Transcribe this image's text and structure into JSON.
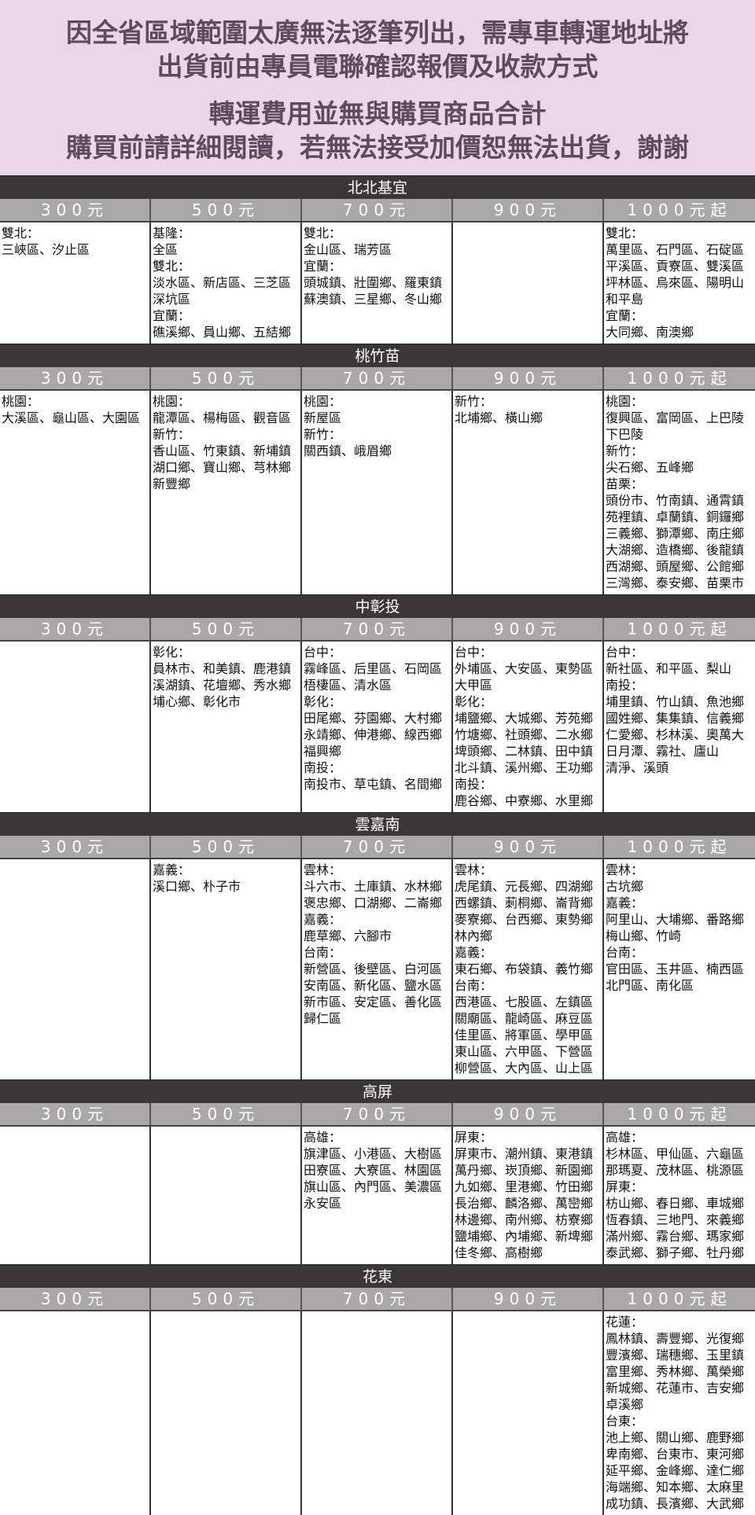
{
  "notice": {
    "lines": [
      "因全省區域範圍太廣無法逐筆列出，需專車轉運地址將",
      "出貨前由專員電聯確認報價及收款方式",
      "轉運費用並無與購買商品合計",
      "購買前請詳細閱讀，若無法接受加價恕無法出貨，謝謝"
    ],
    "color": "#5c4b5f",
    "background": "#ebd6e9"
  },
  "price_headers": [
    "300元",
    "500元",
    "700元",
    "900元",
    "1000元起"
  ],
  "sections": [
    {
      "name": "北北基宜",
      "cells": [
        [
          "雙北：",
          "三峽區、汐止區"
        ],
        [
          "基隆：",
          "全區",
          "雙北：",
          "淡水區、新店區、三芝區",
          "深坑區",
          "宜蘭：",
          "礁溪鄉、員山鄉、五結鄉"
        ],
        [
          "雙北：",
          "金山區、瑞芳區",
          "宜蘭：",
          "頭城鎮、壯圍鄉、羅東鎮",
          "蘇澳鎮、三星鄉、冬山鄉"
        ],
        [],
        [
          "雙北：",
          "萬里區、石門區、石碇區",
          "平溪區、貢寮區、雙溪區",
          "坪林區、烏來區、陽明山",
          "和平島",
          "宜蘭：",
          "大同鄉、南澳鄉"
        ]
      ]
    },
    {
      "name": "桃竹苗",
      "cells": [
        [
          "桃園：",
          "大溪區、龜山區、大園區"
        ],
        [
          "桃園：",
          "龍潭區、楊梅區、觀音區",
          "新竹：",
          "香山區、竹東鎮、新埔鎮",
          "湖口鄉、寶山鄉、芎林鄉",
          "新豐鄉"
        ],
        [
          "桃園：",
          "新屋區",
          "新竹：",
          "關西鎮、峨眉鄉"
        ],
        [
          "新竹：",
          "北埔鄉、橫山鄉"
        ],
        [
          "桃園：",
          "復興區、富岡區、上巴陵",
          "下巴陵",
          "新竹：",
          "尖石鄉、五峰鄉",
          "苗栗：",
          "頭份市、竹南鎮、通霄鎮",
          "苑裡鎮、卓蘭鎮、銅鑼鄉",
          "三義鄉、獅潭鄉、南庄鄉",
          "大湖鄉、造橋鄉、後龍鎮",
          "西湖鄉、頭屋鄉、公館鄉",
          "三灣鄉、泰安鄉、苗栗市"
        ]
      ]
    },
    {
      "name": "中彰投",
      "cells": [
        [],
        [
          "彰化：",
          "員林市、和美鎮、鹿港鎮",
          "溪湖鎮、花壇鄉、秀水鄉",
          "埔心鄉、彰化市"
        ],
        [
          "台中：",
          "霧峰區、后里區、石岡區",
          "梧棲區、清水區",
          "彰化：",
          "田尾鄉、芬園鄉、大村鄉",
          "永靖鄉、伸港鄉、線西鄉",
          "福興鄉",
          "南投：",
          "南投市、草屯鎮、名間鄉"
        ],
        [
          "台中：",
          "外埔區、大安區、東勢區",
          "大甲區",
          "彰化：",
          "埔鹽鄉、大城鄉、芳苑鄉",
          "竹塘鄉、社頭鄉、二水鄉",
          "埤頭鄉、二林鎮、田中鎮",
          "北斗鎮、溪州鄉、王功鄉",
          "南投：",
          "鹿谷鄉、中寮鄉、水里鄉"
        ],
        [
          "台中：",
          "新社區、和平區、梨山",
          "南投：",
          "埔里鎮、竹山鎮、魚池鄉",
          "國姓鄉、集集鎮、信義鄉",
          "仁愛鄉、杉林溪、奧萬大",
          "日月潭、霧社、廬山",
          "清淨、溪頭"
        ]
      ]
    },
    {
      "name": "雲嘉南",
      "cells": [
        [],
        [
          "嘉義：",
          "溪口鄉、朴子市"
        ],
        [
          "雲林：",
          "斗六市、土庫鎮、水林鄉",
          "褒忠鄉、口湖鄉、二崙鄉",
          "嘉義：",
          "鹿草鄉、六腳市",
          "台南：",
          "新營區、後壁區、白河區",
          "安南區、新化區、鹽水區",
          "新市區、安定區、善化區",
          "歸仁區"
        ],
        [
          "雲林：",
          "虎尾鎮、元長鄉、四湖鄉",
          "西螺鎮、莿桐鄉、崙背鄉",
          "麥寮鄉、台西鄉、東勢鄉",
          "林內鄉",
          "嘉義：",
          "東石鄉、布袋鎮、義竹鄉",
          "台南：",
          "西港區、七股區、左鎮區",
          "關廟區、龍崎區、麻豆區",
          "佳里區、將軍區、學甲區",
          "東山區、六甲區、下營區",
          "柳營區、大內區、山上區"
        ],
        [
          "雲林：",
          "古坑鄉",
          "嘉義：",
          "阿里山、大埔鄉、番路鄉",
          "梅山鄉、竹崎",
          "台南：",
          "官田區、玉井區、楠西區",
          "北門區、南化區"
        ]
      ]
    },
    {
      "name": "高屏",
      "cells": [
        [],
        [],
        [
          "高雄：",
          "旗津區、小港區、大樹區",
          "田寮區、大寮區、林園區",
          "旗山區、內門區、美濃區",
          "永安區"
        ],
        [
          "屏東：",
          "屏東市、潮州鎮、東港鎮",
          "萬丹鄉、崁頂鄉、新園鄉",
          "九如鄉、里港鄉、竹田鄉",
          "長治鄉、麟洛鄉、萬巒鄉",
          "林邊鄉、南州鄉、枋寮鄉",
          "鹽埔鄉、內埔鄉、新埤鄉",
          "佳冬鄉、高樹鄉"
        ],
        [
          "高雄：",
          "杉林區、甲仙區、六龜區",
          "那瑪夏、茂林區、桃源區",
          "屏東：",
          "枋山鄉、春日鄉、車城鄉",
          "恆春鎮、三地門、來義鄉",
          "滿州鄉、霧台鄉、瑪家鄉",
          "泰武鄉、獅子鄉、牡丹鄉"
        ]
      ]
    },
    {
      "name": "花東",
      "cells": [
        [],
        [],
        [],
        [],
        [
          "花蓮：",
          "鳳林鎮、壽豐鄉、光復鄉",
          "豐濱鄉、瑞穗鄉、玉里鎮",
          "富里鄉、秀林鄉、萬榮鄉",
          "新城鄉、花蓮市、吉安鄉",
          "卓溪鄉",
          "台東：",
          "池上鄉、關山鄉、鹿野鄉",
          "卑南鄉、台東市、東河鄉",
          "延平鄉、金峰鄉、達仁鄉",
          "海端鄉、知本鄉、太麻里",
          "成功鎮、長濱鄉、大武鄉"
        ]
      ]
    }
  ],
  "colors": {
    "region_bar": "#3b3738",
    "price_header": "#a9a7a8"
  }
}
